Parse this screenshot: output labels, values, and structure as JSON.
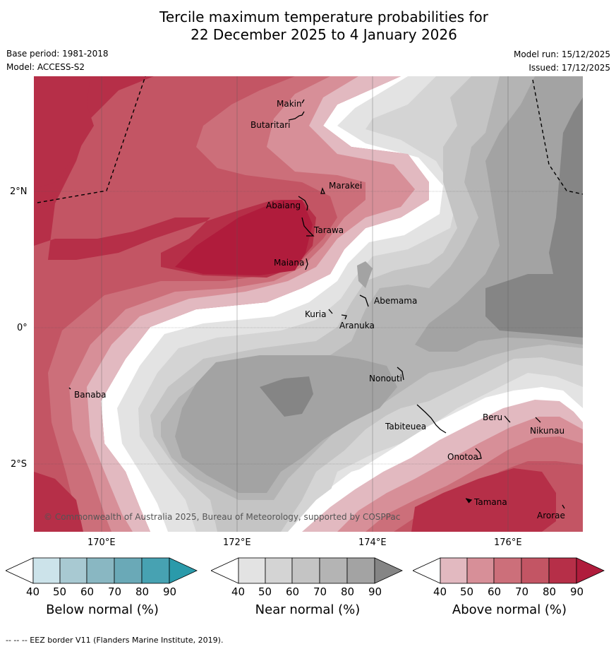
{
  "title_line1": "Tercile maximum temperature probabilities for",
  "title_line2": "22 December 2025 to 4 January 2026",
  "meta_left": {
    "base_period": "Base period: 1981-2018",
    "model": "Model: ACCESS-S2"
  },
  "meta_right": {
    "model_run": "Model run: 15/12/2025",
    "issued": "Issued: 17/12/2025"
  },
  "axes": {
    "lat_labels": [
      "2°N",
      "0°",
      "2°S"
    ],
    "lon_labels": [
      "170°E",
      "172°E",
      "174°E",
      "176°E"
    ]
  },
  "places": [
    "Makin",
    "Butaritari",
    "Marakei",
    "Abaiang",
    "Tarawa",
    "Maiana",
    "Abemama",
    "Kuria",
    "Aranuka",
    "Banaba",
    "Nonouti",
    "Tabiteuea",
    "Beru",
    "Nikunau",
    "Onotoa",
    "Tamana",
    "Arorae"
  ],
  "copyright": "© Commonwealth of Australia 2025, Bureau of Meteorology, supported by COSPPac",
  "colorbars": [
    {
      "title": "Below normal (%)",
      "ticks": [
        "40",
        "50",
        "60",
        "70",
        "80",
        "90"
      ],
      "colors": [
        "#ffffff",
        "#cce3ea",
        "#a8c9d2",
        "#89b7c2",
        "#6aa9b7",
        "#47a2b2",
        "#2a9aaa"
      ]
    },
    {
      "title": "Near normal (%)",
      "ticks": [
        "40",
        "50",
        "60",
        "70",
        "80",
        "90"
      ],
      "colors": [
        "#ffffff",
        "#e3e3e3",
        "#d4d4d4",
        "#c4c4c4",
        "#b4b4b4",
        "#a3a3a3",
        "#858585"
      ]
    },
    {
      "title": "Above normal (%)",
      "ticks": [
        "40",
        "50",
        "60",
        "70",
        "80",
        "90"
      ],
      "colors": [
        "#ffffff",
        "#e2b9c0",
        "#d78f98",
        "#cc6f7a",
        "#c35564",
        "#b62f48",
        "#b01c3c"
      ]
    }
  ],
  "footer": "-- -- -- EEZ border V11 (Flanders Marine Institute, 2019)."
}
